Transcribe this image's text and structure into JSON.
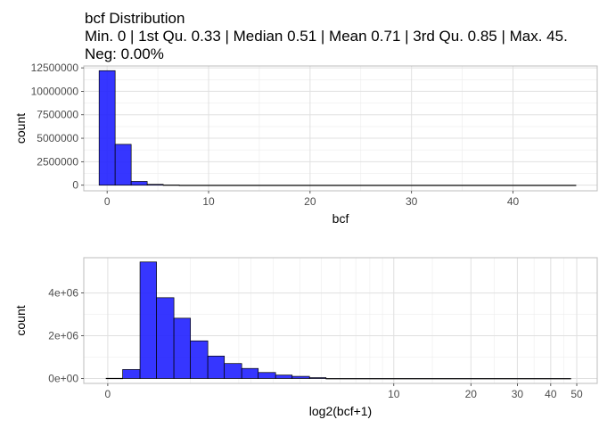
{
  "title": {
    "line1": "bcf Distribution",
    "line2": "Min. 0 | 1st Qu. 0.33 | Median 0.51 | Mean 0.71 | 3rd Qu. 0.85 | Max. 45.",
    "line3": "Neg: 0.00%"
  },
  "colors": {
    "bar_fill": "#1a1aff",
    "bar_stroke": "#000000",
    "panel_border": "#bdbdbd",
    "grid_major": "#e0e0e0",
    "grid_minor": "#ececec",
    "tick_text": "#4d4d4d"
  },
  "chart_data": [
    {
      "type": "bar",
      "xlabel": "bcf",
      "ylabel": "count",
      "xlim": [
        -2.3,
        48.3
      ],
      "ylim": [
        -600000,
        12700000
      ],
      "x_ticks": [
        0,
        10,
        20,
        30,
        40
      ],
      "y_ticks": [
        0,
        2500000,
        5000000,
        7500000,
        10000000,
        12500000
      ],
      "y_tick_labels": [
        "0",
        "2500000",
        "5000000",
        "7500000",
        "10000000",
        "12500000"
      ],
      "grid": true,
      "bins": [
        {
          "x0": -0.79,
          "x1": 0.79,
          "count": 12200000
        },
        {
          "x0": 0.79,
          "x1": 2.37,
          "count": 4350000
        },
        {
          "x0": 2.37,
          "x1": 3.95,
          "count": 400000
        },
        {
          "x0": 3.95,
          "x1": 5.53,
          "count": 90000
        },
        {
          "x0": 5.53,
          "x1": 7.11,
          "count": 25000
        },
        {
          "x0": 7.11,
          "x1": 46.2,
          "count": 0
        }
      ]
    },
    {
      "type": "bar",
      "xlabel": "log2(bcf+1)",
      "ylabel": "count",
      "x_scale": "log2(x+1)",
      "xlim": [
        -0.29,
        5.92
      ],
      "ylim": [
        -230000,
        5650000
      ],
      "x_ticks": [
        0,
        10,
        20,
        30,
        40,
        50
      ],
      "x_tick_labels": [
        "0",
        "10",
        "20",
        "30",
        "40",
        "50"
      ],
      "y_ticks": [
        0,
        2000000,
        4000000
      ],
      "y_tick_labels": [
        "0e+00",
        "2e+06",
        "4e+06"
      ],
      "grid": true,
      "bins": [
        {
          "x0": -0.02,
          "x1": 0.18,
          "count": 10000
        },
        {
          "x0": 0.18,
          "x1": 0.39,
          "count": 420000
        },
        {
          "x0": 0.39,
          "x1": 0.59,
          "count": 5450000
        },
        {
          "x0": 0.59,
          "x1": 0.8,
          "count": 3780000
        },
        {
          "x0": 0.8,
          "x1": 1.0,
          "count": 2820000
        },
        {
          "x0": 1.0,
          "x1": 1.21,
          "count": 1760000
        },
        {
          "x0": 1.21,
          "x1": 1.41,
          "count": 1050000
        },
        {
          "x0": 1.41,
          "x1": 1.62,
          "count": 700000
        },
        {
          "x0": 1.62,
          "x1": 1.82,
          "count": 470000
        },
        {
          "x0": 1.82,
          "x1": 2.03,
          "count": 280000
        },
        {
          "x0": 2.03,
          "x1": 2.23,
          "count": 160000
        },
        {
          "x0": 2.23,
          "x1": 2.44,
          "count": 100000
        },
        {
          "x0": 2.44,
          "x1": 2.64,
          "count": 40000
        },
        {
          "x0": 2.64,
          "x1": 5.6,
          "count": 0
        }
      ]
    }
  ]
}
